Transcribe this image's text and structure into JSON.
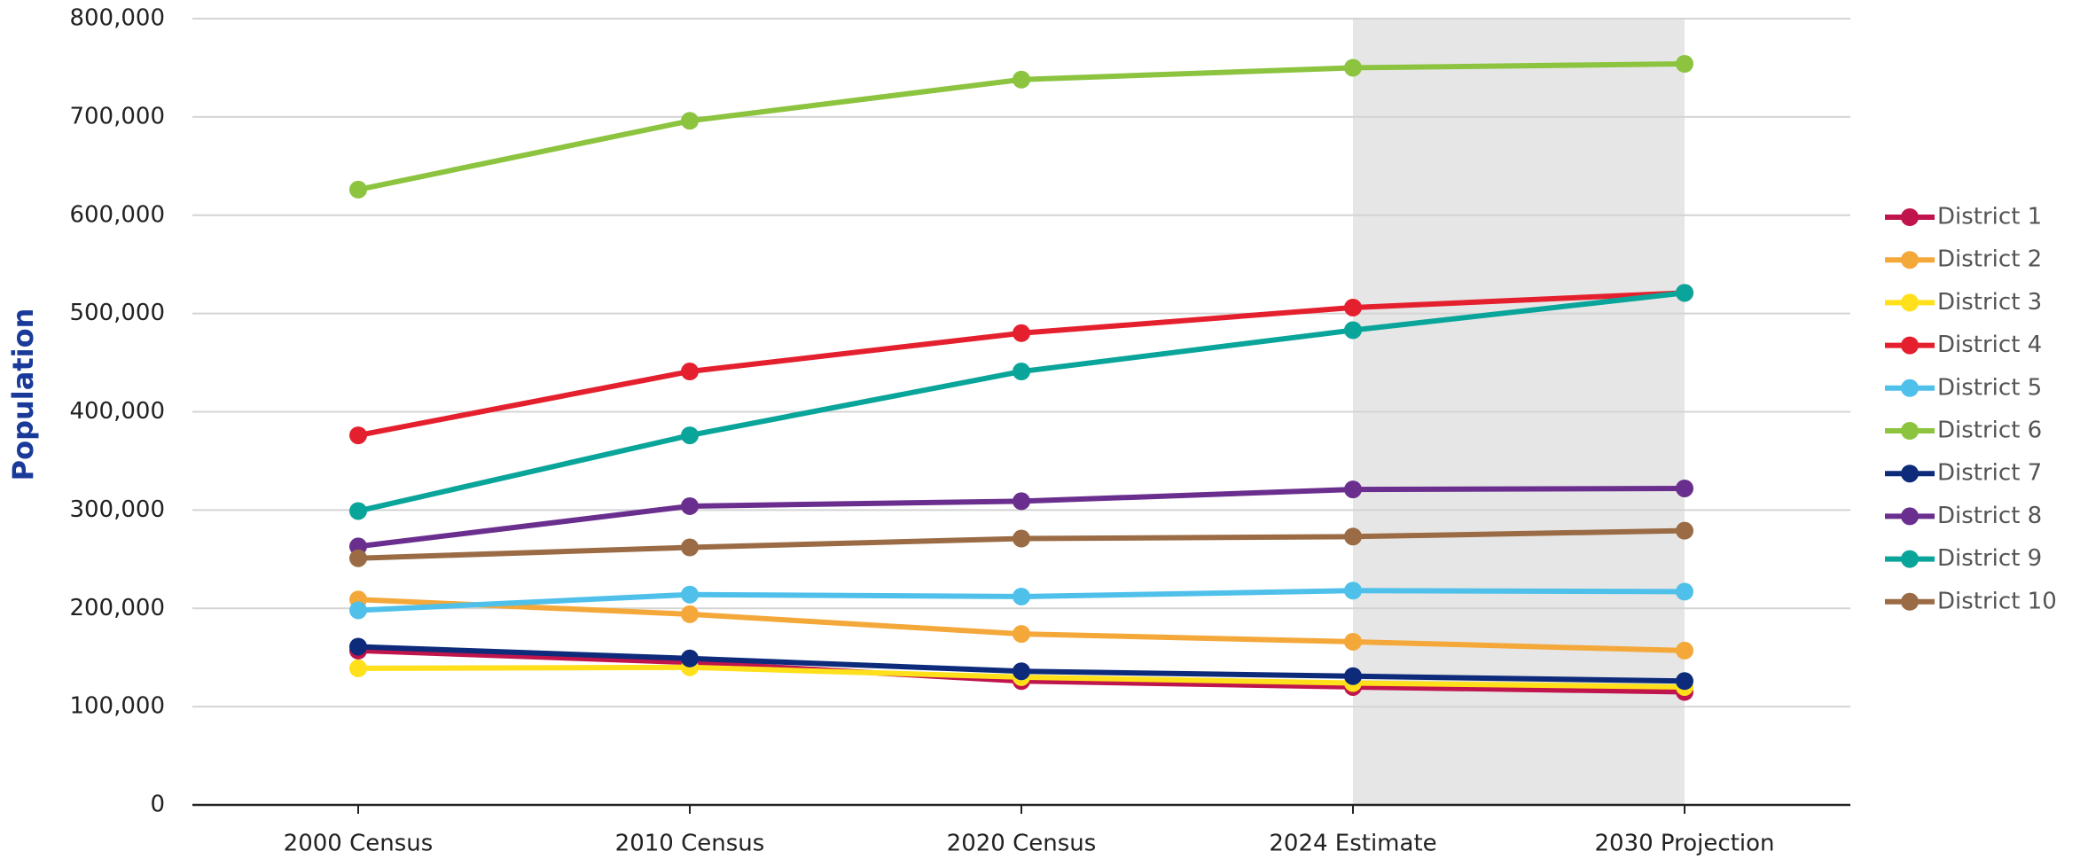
{
  "chart_data": {
    "type": "line",
    "y_label": "Population",
    "categories": [
      "2000 Census",
      "2010 Census",
      "2020 Census",
      "2024 Estimate",
      "2030 Projection"
    ],
    "ylim": [
      0,
      800000
    ],
    "yticks": [
      0,
      {
        "value": 100000,
        "label": "100,000"
      },
      {
        "value": 200000,
        "label": "200,000"
      },
      {
        "value": 300000,
        "label": "300,000"
      },
      {
        "value": 400000,
        "label": "400,000"
      },
      {
        "value": 500000,
        "label": "500,000"
      },
      {
        "value": 600000,
        "label": "600,000"
      },
      {
        "value": 700000,
        "label": "700,000"
      },
      {
        "value": 800000,
        "label": "800,000"
      }
    ],
    "grid": true,
    "legend": "right",
    "series": [
      {
        "name": "District 1",
        "color": "#c0144c",
        "values": [
          157000,
          145000,
          126000,
          120000,
          115000
        ]
      },
      {
        "name": "District 2",
        "color": "#f4a83a",
        "values": [
          209000,
          194000,
          174000,
          166000,
          157000
        ]
      },
      {
        "name": "District 3",
        "color": "#ffe01a",
        "values": [
          139000,
          140000,
          130000,
          124000,
          120000
        ]
      },
      {
        "name": "District 4",
        "color": "#e5202e",
        "values": [
          376000,
          441000,
          480000,
          506000,
          521000
        ]
      },
      {
        "name": "District 5",
        "color": "#4ec0ea",
        "values": [
          198000,
          214000,
          212000,
          218000,
          217000
        ]
      },
      {
        "name": "District 6",
        "color": "#8cc43f",
        "values": [
          626000,
          696000,
          738000,
          750000,
          754000
        ]
      },
      {
        "name": "District 7",
        "color": "#0d2b7a",
        "values": [
          161000,
          149000,
          136000,
          131000,
          126000
        ]
      },
      {
        "name": "District 8",
        "color": "#6a2f8e",
        "values": [
          263000,
          304000,
          309000,
          321000,
          322000
        ]
      },
      {
        "name": "District 9",
        "color": "#0aa59a",
        "values": [
          299000,
          376000,
          441000,
          483000,
          521000
        ]
      },
      {
        "name": "District 10",
        "color": "#9a6b44",
        "values": [
          251000,
          262000,
          271000,
          273000,
          279000
        ]
      }
    ]
  }
}
